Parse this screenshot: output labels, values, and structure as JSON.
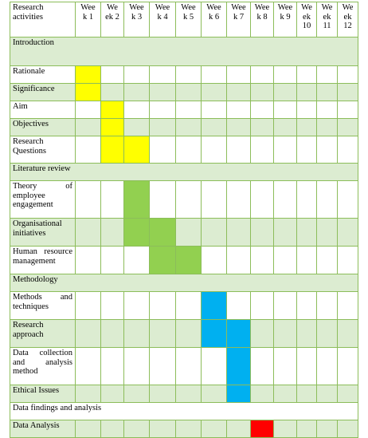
{
  "header": {
    "activity_label": "Research activities",
    "weeks": [
      "Wee k 1",
      "We ek 2",
      "Wee k 3",
      "Wee k 4",
      "Wee k 5",
      "Wee k 6",
      "Wee k 7",
      "Wee k 8",
      "Wee k 9",
      "We ek 10",
      "We ek 11",
      "We ek 12"
    ]
  },
  "sections": {
    "introduction": "Introduction",
    "literature_review": "Literature review",
    "methodology": "Methodology",
    "data_findings": "Data findings and analysis"
  },
  "activities": {
    "rationale": "Rationale",
    "significance": "Significance",
    "aim": "Aim",
    "objectives": "Objectives",
    "research_questions": "Research Questions",
    "theory_engagement": "Theory of employee engagement",
    "organisational_initiatives": "Organisational initiatives",
    "hr_management": "Human resource management",
    "methods_techniques": "Methods and techniques",
    "research_approach": "Research approach",
    "data_collection": "Data collection and analysis method",
    "ethical_issues": "Ethical Issues",
    "data_analysis": "Data Analysis"
  },
  "colors": {
    "grid": "#8cbd5a",
    "band": "#dcecd1",
    "introduction": "#ffff00",
    "literature_review": "#92d050",
    "methodology": "#00b0f0",
    "data_analysis": "#ff0000"
  },
  "schedule": {
    "rationale": [
      1
    ],
    "significance": [
      1
    ],
    "aim": [
      2
    ],
    "objectives": [
      2
    ],
    "research_questions": [
      2,
      3
    ],
    "theory_engagement": [
      3
    ],
    "organisational_initiatives": [
      3,
      4
    ],
    "hr_management": [
      4,
      5
    ],
    "methods_techniques": [
      6
    ],
    "research_approach": [
      6,
      7
    ],
    "data_collection": [
      7
    ],
    "ethical_issues": [
      7
    ],
    "data_analysis": [
      8
    ]
  }
}
